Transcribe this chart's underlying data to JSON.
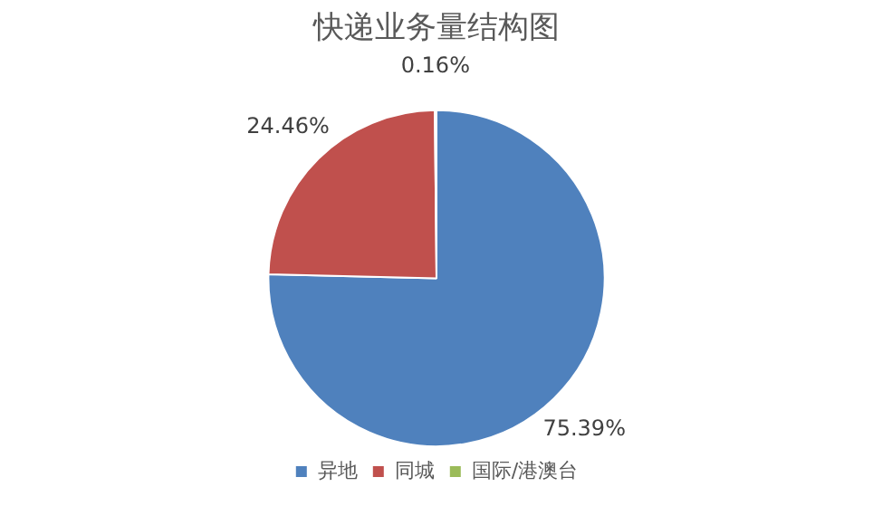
{
  "chart_data": {
    "type": "pie",
    "title": "快递业务量结构图",
    "categories": [
      "异地",
      "同城",
      "国际/港澳台"
    ],
    "values": [
      75.39,
      24.46,
      0.16
    ],
    "colors": [
      "#4f81bd",
      "#c0504d",
      "#9bbb59"
    ],
    "value_labels": [
      "75.39%",
      "24.46%",
      "0.16%"
    ],
    "legend": "bottom"
  }
}
